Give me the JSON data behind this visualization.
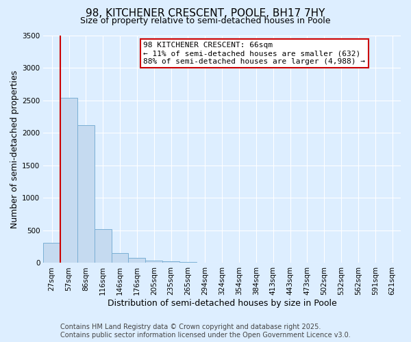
{
  "title": "98, KITCHENER CRESCENT, POOLE, BH17 7HY",
  "subtitle": "Size of property relative to semi-detached houses in Poole",
  "xlabel": "Distribution of semi-detached houses by size in Poole",
  "ylabel": "Number of semi-detached properties",
  "bins": [
    "27sqm",
    "57sqm",
    "86sqm",
    "116sqm",
    "146sqm",
    "176sqm",
    "205sqm",
    "235sqm",
    "265sqm",
    "294sqm",
    "324sqm",
    "354sqm",
    "384sqm",
    "413sqm",
    "443sqm",
    "473sqm",
    "502sqm",
    "532sqm",
    "562sqm",
    "591sqm",
    "621sqm"
  ],
  "values": [
    310,
    2540,
    2120,
    520,
    150,
    75,
    40,
    25,
    20,
    0,
    0,
    0,
    0,
    0,
    0,
    0,
    0,
    0,
    0,
    0,
    0
  ],
  "bar_color": "#c5daf0",
  "bar_edge_color": "#7aafd4",
  "vline_x_index": 1,
  "vline_color": "#cc0000",
  "annotation_box_text": "98 KITCHENER CRESCENT: 66sqm\n← 11% of semi-detached houses are smaller (632)\n88% of semi-detached houses are larger (4,988) →",
  "annotation_box_color": "#cc0000",
  "annotation_box_bg": "#ffffff",
  "ylim": [
    0,
    3500
  ],
  "yticks": [
    0,
    500,
    1000,
    1500,
    2000,
    2500,
    3000,
    3500
  ],
  "footer_line1": "Contains HM Land Registry data © Crown copyright and database right 2025.",
  "footer_line2": "Contains public sector information licensed under the Open Government Licence v3.0.",
  "bg_color": "#ddeeff",
  "plot_bg_color": "#ddeeff",
  "title_fontsize": 11,
  "subtitle_fontsize": 9,
  "axis_label_fontsize": 9,
  "tick_fontsize": 7.5,
  "footer_fontsize": 7,
  "annotation_fontsize": 8
}
